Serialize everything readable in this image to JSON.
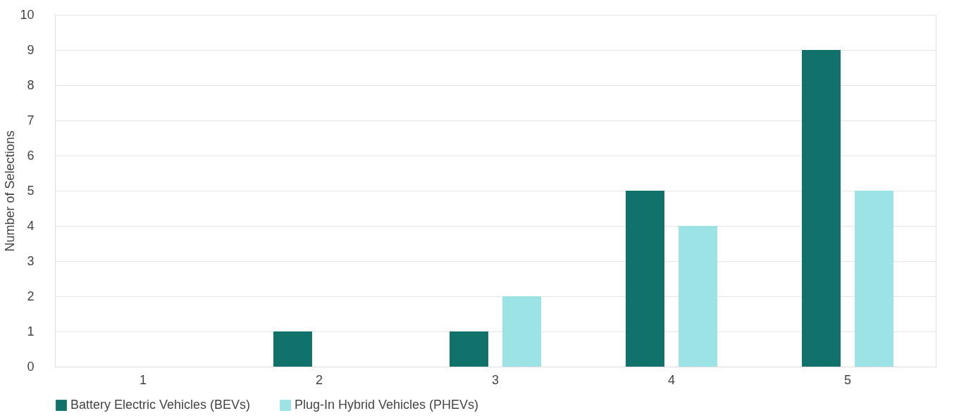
{
  "chart_data": {
    "type": "bar",
    "ylabel": "Number of Selections",
    "categories": [
      "1",
      "2",
      "3",
      "4",
      "5"
    ],
    "series": [
      {
        "name": "Battery Electric Vehicles (BEVs)",
        "color": "#11726b",
        "values": [
          0,
          1,
          1,
          5,
          9
        ]
      },
      {
        "name": "Plug-In Hybrid Vehicles (PHEVs)",
        "color": "#9ce3e6",
        "values": [
          0,
          0,
          2,
          4,
          5
        ]
      }
    ],
    "ylim": [
      0,
      10
    ],
    "yticks": [
      0,
      1,
      2,
      3,
      4,
      5,
      6,
      7,
      8,
      9,
      10
    ],
    "grid": "y",
    "legend": "bottom"
  }
}
